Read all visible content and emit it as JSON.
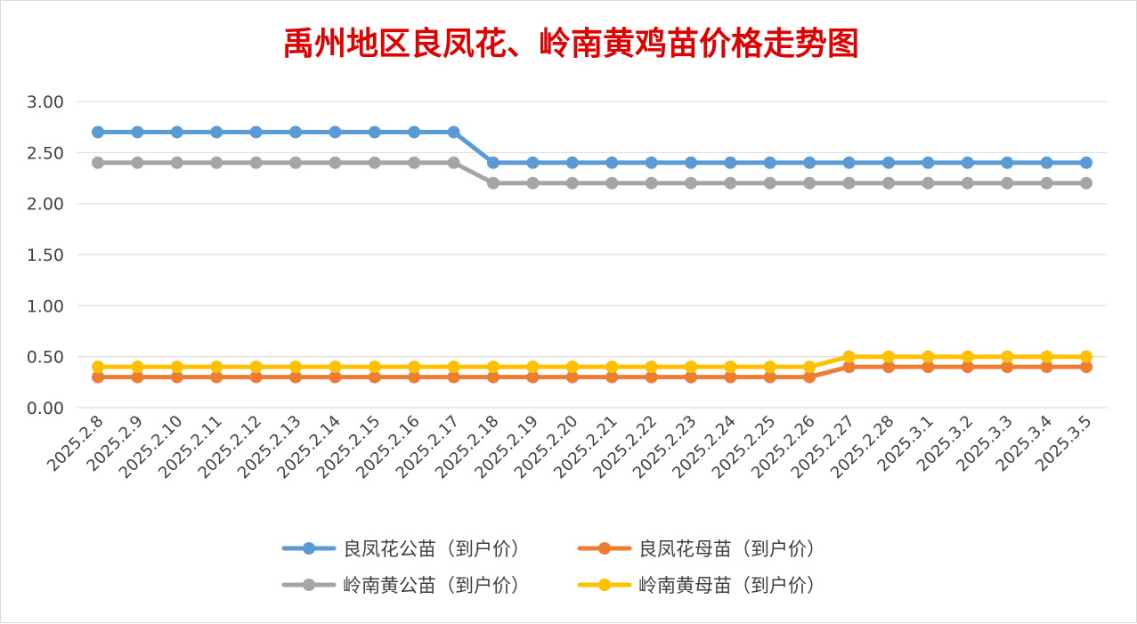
{
  "chart_data": {
    "type": "line",
    "title": "禹州地区良凤花、岭南黄鸡苗价格走势图",
    "xlabel": "",
    "ylabel": "",
    "ylim": [
      0,
      3
    ],
    "yticks": [
      "0.00",
      "0.50",
      "1.00",
      "1.50",
      "2.00",
      "2.50",
      "3.00"
    ],
    "grid": true,
    "legend_position": "bottom",
    "categories": [
      "2025.2.8",
      "2025.2.9",
      "2025.2.10",
      "2025.2.11",
      "2025.2.12",
      "2025.2.13",
      "2025.2.14",
      "2025.2.15",
      "2025.2.16",
      "2025.2.17",
      "2025.2.18",
      "2025.2.19",
      "2025.2.20",
      "2025.2.21",
      "2025.2.22",
      "2025.2.23",
      "2025.2.24",
      "2025.2.25",
      "2025.2.26",
      "2025.2.27",
      "2025.2.28",
      "2025.3.1",
      "2025.3.2",
      "2025.3.3",
      "2025.3.4",
      "2025.3.5"
    ],
    "series": [
      {
        "name": "良凤花公苗（到户价）",
        "color": "#5b9bd5",
        "values": [
          2.7,
          2.7,
          2.7,
          2.7,
          2.7,
          2.7,
          2.7,
          2.7,
          2.7,
          2.7,
          2.4,
          2.4,
          2.4,
          2.4,
          2.4,
          2.4,
          2.4,
          2.4,
          2.4,
          2.4,
          2.4,
          2.4,
          2.4,
          2.4,
          2.4,
          2.4
        ]
      },
      {
        "name": "良凤花母苗（到户价）",
        "color": "#ed7d31",
        "values": [
          0.3,
          0.3,
          0.3,
          0.3,
          0.3,
          0.3,
          0.3,
          0.3,
          0.3,
          0.3,
          0.3,
          0.3,
          0.3,
          0.3,
          0.3,
          0.3,
          0.3,
          0.3,
          0.3,
          0.4,
          0.4,
          0.4,
          0.4,
          0.4,
          0.4,
          0.4
        ]
      },
      {
        "name": "岭南黄公苗（到户价）",
        "color": "#a5a5a5",
        "values": [
          2.4,
          2.4,
          2.4,
          2.4,
          2.4,
          2.4,
          2.4,
          2.4,
          2.4,
          2.4,
          2.2,
          2.2,
          2.2,
          2.2,
          2.2,
          2.2,
          2.2,
          2.2,
          2.2,
          2.2,
          2.2,
          2.2,
          2.2,
          2.2,
          2.2,
          2.2
        ]
      },
      {
        "name": "岭南黄母苗（到户价）",
        "color": "#ffc000",
        "values": [
          0.4,
          0.4,
          0.4,
          0.4,
          0.4,
          0.4,
          0.4,
          0.4,
          0.4,
          0.4,
          0.4,
          0.4,
          0.4,
          0.4,
          0.4,
          0.4,
          0.4,
          0.4,
          0.4,
          0.5,
          0.5,
          0.5,
          0.5,
          0.5,
          0.5,
          0.5
        ]
      }
    ]
  }
}
